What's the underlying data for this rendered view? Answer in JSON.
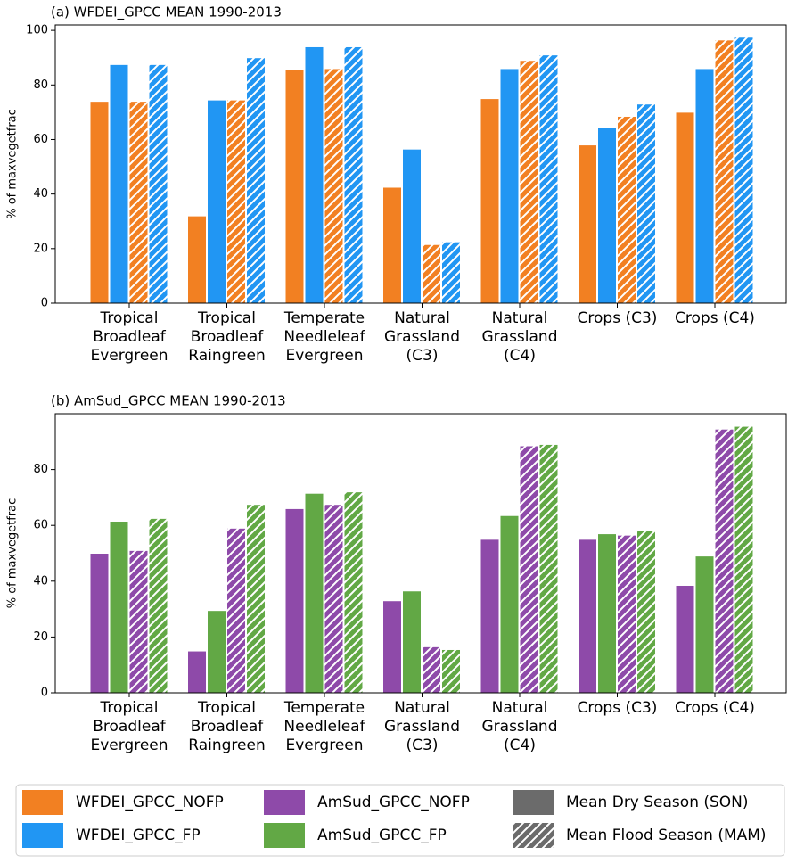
{
  "chart_data": [
    {
      "type": "bar",
      "title": "(a) WFDEI_GPCC MEAN 1990-2013",
      "y_label": "% of maxvegetfrac",
      "categories": [
        "Tropical\nBroadleaf\nEvergreen",
        "Tropical\nBroadleaf\nRaingreen",
        "Temperate\nNeedleleaf\nEvergreen",
        "Natural\nGrassland\n(C3)",
        "Natural\nGrassland\n(C4)",
        "Crops (C3)",
        "Crops (C4)"
      ],
      "series": [
        {
          "color": "#f28022",
          "hatch": false,
          "values": [
            74,
            32,
            85.5,
            42.5,
            75,
            58,
            70
          ]
        },
        {
          "color": "#2196f3",
          "hatch": false,
          "values": [
            87.5,
            74.5,
            94,
            56.5,
            86,
            64.5,
            86
          ]
        },
        {
          "color": "#f28022",
          "hatch": true,
          "values": [
            74,
            74.5,
            86,
            21.5,
            89,
            68.5,
            96.5
          ]
        },
        {
          "color": "#2196f3",
          "hatch": true,
          "values": [
            87.5,
            90,
            94,
            22.5,
            91,
            73,
            97.5
          ]
        }
      ],
      "ylim": [
        0,
        102
      ],
      "yticks": [
        0,
        20,
        40,
        60,
        80,
        100
      ]
    },
    {
      "type": "bar",
      "title": "(b) AmSud_GPCC MEAN 1990-2013",
      "y_label": "% of maxvegetfrac",
      "categories": [
        "Tropical\nBroadleaf\nEvergreen",
        "Tropical\nBroadleaf\nRaingreen",
        "Temperate\nNeedleleaf\nEvergreen",
        "Natural\nGrassland\n(C3)",
        "Natural\nGrassland\n(C4)",
        "Crops (C3)",
        "Crops (C4)"
      ],
      "series": [
        {
          "color": "#8e4aa9",
          "hatch": false,
          "values": [
            50,
            15,
            66,
            33,
            55,
            55,
            38.5
          ]
        },
        {
          "color": "#62a845",
          "hatch": false,
          "values": [
            61.5,
            29.5,
            71.5,
            36.5,
            63.5,
            57,
            49
          ]
        },
        {
          "color": "#8e4aa9",
          "hatch": true,
          "values": [
            51,
            59,
            67.5,
            16.5,
            88.5,
            56.5,
            94.5
          ]
        },
        {
          "color": "#62a845",
          "hatch": true,
          "values": [
            62.5,
            67.5,
            72,
            15.5,
            89,
            58,
            95.5
          ]
        }
      ],
      "ylim": [
        0,
        100
      ],
      "yticks": [
        0,
        20,
        40,
        60,
        80
      ]
    }
  ],
  "legend": {
    "items": [
      {
        "label": "WFDEI_GPCC_NOFP",
        "color": "#f28022",
        "hatch": false
      },
      {
        "label": "WFDEI_GPCC_FP",
        "color": "#2196f3",
        "hatch": false
      },
      {
        "label": "AmSud_GPCC_NOFP",
        "color": "#8e4aa9",
        "hatch": false
      },
      {
        "label": "AmSud_GPCC_FP",
        "color": "#62a845",
        "hatch": false
      },
      {
        "label": "Mean Dry Season (SON)",
        "color": "#6b6b6b",
        "hatch": false
      },
      {
        "label": "Mean Flood Season (MAM)",
        "color": "#6b6b6b",
        "hatch": true
      }
    ]
  }
}
